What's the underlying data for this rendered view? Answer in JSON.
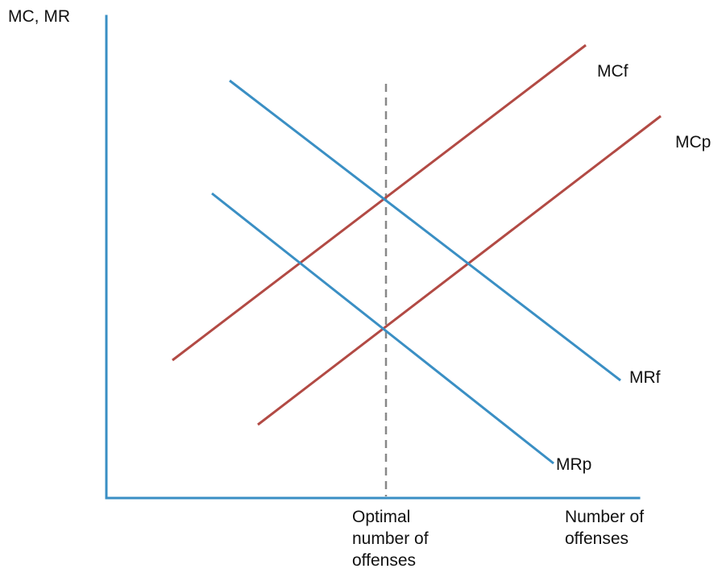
{
  "diagram": {
    "type": "economics-cost-revenue-diagram",
    "y_axis_label": "MC, MR",
    "x_axis_label_lines": [
      "Number of",
      "offenses"
    ],
    "marker_label_lines": [
      "Optimal",
      "number of",
      "offenses"
    ],
    "colors": {
      "axis": "#3a8fc4",
      "mc_curve": "#b24a44",
      "mr_curve": "#3a8fc4",
      "dashed_line": "#888888",
      "text": "#111111"
    },
    "curves": [
      {
        "label": "MCf",
        "kind": "mc"
      },
      {
        "label": "MCp",
        "kind": "mc"
      },
      {
        "label": "MRf",
        "kind": "mr"
      },
      {
        "label": "MRp",
        "kind": "mr"
      }
    ]
  }
}
